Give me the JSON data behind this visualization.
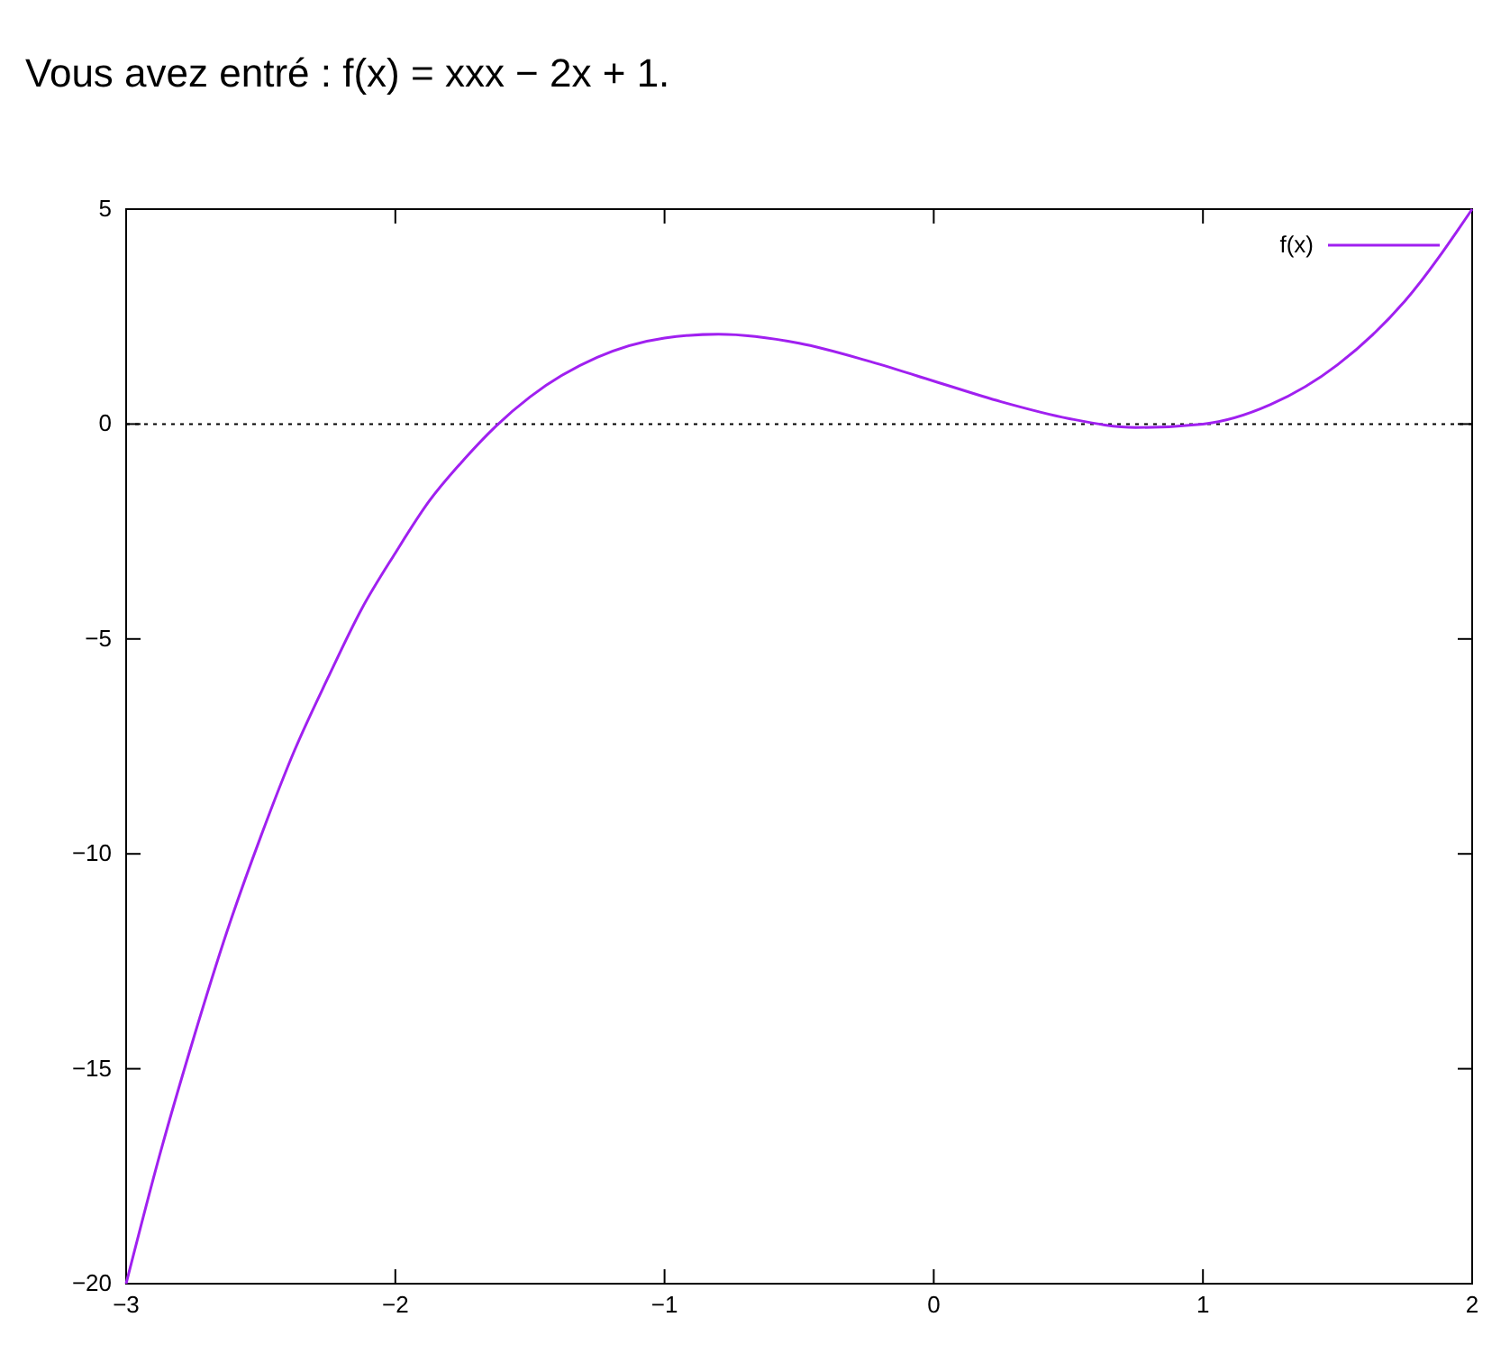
{
  "chart_data": {
    "type": "line",
    "title": "Vous avez entré : f(x) = xxx − 2x + 1.",
    "series": [
      {
        "name": "f(x)",
        "color": "#a020f0",
        "x": [
          -3,
          -2.875,
          -2.75,
          -2.625,
          -2.5,
          -2.375,
          -2.25,
          -2.125,
          -2,
          -1.875,
          -1.75,
          -1.625,
          -1.5,
          -1.25,
          -1,
          -0.8,
          -0.5,
          -0.25,
          0,
          0.25,
          0.5,
          0.75,
          1,
          1.25,
          1.5,
          1.75,
          2
        ],
        "values": [
          -20,
          -17,
          -14.3,
          -11.8,
          -9.6,
          -7.6,
          -5.9,
          -4.3,
          -3,
          -1.8,
          -0.86,
          -0.04,
          0.63,
          1.55,
          2,
          2.09,
          1.88,
          1.48,
          1,
          0.52,
          0.13,
          -0.08,
          0,
          0.45,
          1.38,
          2.86,
          5
        ]
      }
    ],
    "xlim": [
      -3,
      2
    ],
    "xticks": [
      -3,
      -2,
      -1,
      0,
      1,
      2
    ],
    "ylim": [
      -20,
      5
    ],
    "yticks": [
      -20,
      -15,
      -10,
      -5,
      0,
      5
    ],
    "ref_lines": [
      {
        "axis": "y",
        "value": 0,
        "line_style": "dotted",
        "color": "#000000"
      }
    ],
    "legend": "top right",
    "grid": false,
    "marker": "none",
    "line_style": "solid"
  }
}
